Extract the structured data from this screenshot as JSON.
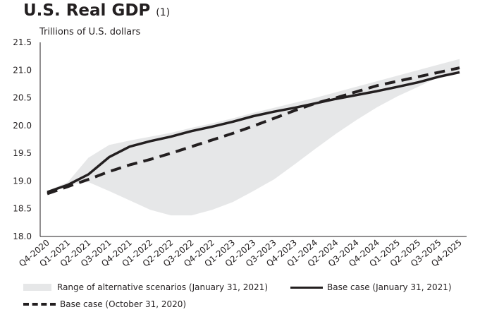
{
  "header": {
    "title": "U.S. Real GDP",
    "title_footnote": "(1)",
    "unit_label": "Trillions of U.S. dollars"
  },
  "chart_data": {
    "type": "line",
    "title": "U.S. Real GDP (1)",
    "ylabel": "Trillions of U.S. dollars",
    "xlabel": "",
    "ylim": [
      18.0,
      21.5
    ],
    "yticks": [
      18.0,
      18.5,
      19.0,
      19.5,
      20.0,
      20.5,
      21.0,
      21.5
    ],
    "grid": false,
    "legend_position": "bottom",
    "categories": [
      "Q4-2020",
      "Q1-2021",
      "Q2-2021",
      "Q3-2021",
      "Q4-2021",
      "Q1-2022",
      "Q2-2022",
      "Q3-2022",
      "Q4-2022",
      "Q1-2023",
      "Q2-2023",
      "Q3-2023",
      "Q4-2023",
      "Q1-2024",
      "Q2-2024",
      "Q3-2024",
      "Q4-2024",
      "Q1-2025",
      "Q2-2025",
      "Q3-2025",
      "Q4-2025"
    ],
    "band": {
      "name": "Range of alternative scenarios (January 31, 2021)",
      "color": "#e6e7e8",
      "upper": [
        18.82,
        18.98,
        19.42,
        19.65,
        19.73,
        19.8,
        19.87,
        19.96,
        20.04,
        20.13,
        20.23,
        20.32,
        20.41,
        20.5,
        20.6,
        20.7,
        20.8,
        20.9,
        21.0,
        21.1,
        21.2
      ],
      "lower": [
        18.82,
        18.93,
        18.98,
        18.82,
        18.65,
        18.48,
        18.38,
        18.38,
        18.48,
        18.62,
        18.82,
        19.03,
        19.3,
        19.58,
        19.85,
        20.1,
        20.33,
        20.53,
        20.7,
        20.88,
        20.96
      ]
    },
    "series": [
      {
        "name": "Base case (January 31, 2021)",
        "style": "solid",
        "color": "#231f20",
        "values": [
          18.8,
          18.93,
          19.12,
          19.43,
          19.62,
          19.72,
          19.8,
          19.9,
          19.98,
          20.07,
          20.17,
          20.25,
          20.32,
          20.4,
          20.48,
          20.55,
          20.62,
          20.7,
          20.78,
          20.88,
          20.96
        ]
      },
      {
        "name": "Base case (October 31, 2020)",
        "style": "dashed",
        "color": "#231f20",
        "values": [
          18.77,
          18.9,
          19.03,
          19.17,
          19.29,
          19.39,
          19.5,
          19.62,
          19.74,
          19.86,
          19.99,
          20.13,
          20.27,
          20.4,
          20.5,
          20.61,
          20.72,
          20.8,
          20.88,
          20.96,
          21.04
        ]
      }
    ]
  },
  "legend": {
    "band_label": "Range of alternative scenarios (January 31, 2021)",
    "solid_label": "Base case (January 31, 2021)",
    "dashed_label": "Base case (October 31, 2020)"
  }
}
